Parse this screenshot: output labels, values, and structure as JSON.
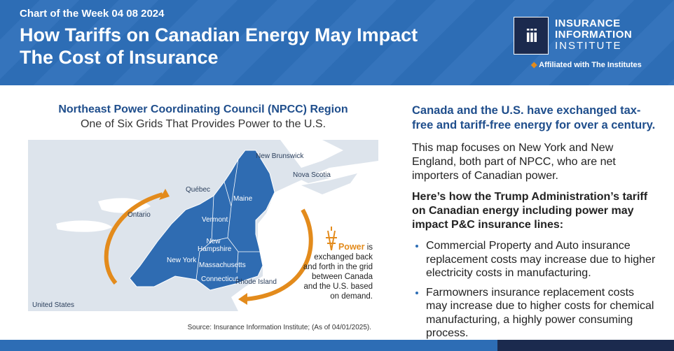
{
  "header": {
    "kicker": "Chart of the Week 04 08 2024",
    "title_lines": [
      "How Tariffs on Canadian Energy May Impact",
      "The Cost of Insurance"
    ],
    "logo": {
      "mark": "iii",
      "name_lines": [
        "INSURANCE",
        "INFORMATION",
        "INSTITUTE"
      ],
      "affiliation": "Affiliated with The Institutes"
    }
  },
  "map": {
    "title": "Northeast Power Coordinating Council (NPCC) Region",
    "subtitle": "One of Six Grids That Provides Power to the U.S.",
    "labels": [
      "New Brunswick",
      "Nova Scotia",
      "Québec",
      "Ontario",
      "Maine",
      "Vermont",
      "New Hampshire",
      "New York",
      "Massachusetts",
      "Connecticut",
      "Rhode Island",
      "United States"
    ],
    "power_note": {
      "highlight": "Power",
      "text": "is exchanged back and forth in the grid between Canada and the U.S. based on demand."
    },
    "source": "Source: Insurance Information Institute; (As of 04/01/2025)."
  },
  "panel": {
    "heading": "Canada and the U.S. have exchanged tax-free and tariff-free energy for over a century.",
    "paragraph": "This map focuses on New York and New England, both part of NPCC, who are net importers of Canadian power.",
    "subheading": "Here’s how the Trump Administration’s tariff on Canadian energy including power may impact P&C insurance lines:",
    "bullets": [
      "Commercial Property and Auto insurance replacement costs may increase due to higher electricity costs in manufacturing.",
      "Farmowners insurance replacement costs may increase due to higher costs for chemical manufacturing, a highly power consuming process."
    ]
  }
}
